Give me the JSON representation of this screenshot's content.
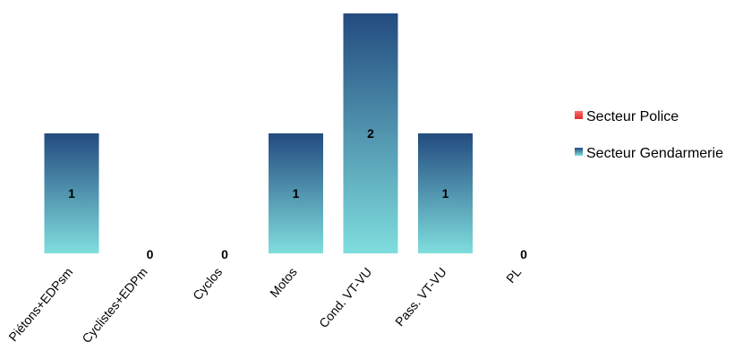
{
  "chart_data": {
    "type": "bar",
    "title": "",
    "xlabel": "",
    "ylabel": "",
    "categories": [
      "Piétons+EDPsm",
      "Cyclistes+EDPm",
      "Cyclos",
      "Motos",
      "Cond. VT-VU",
      "Pass. VT-VU",
      "PL"
    ],
    "series": [
      {
        "name": "Secteur Police",
        "values": [
          0,
          0,
          0,
          0,
          0,
          0,
          0
        ],
        "color": "#f04a4a"
      },
      {
        "name": "Secteur Gendarmerie",
        "values": [
          1,
          0,
          0,
          1,
          2,
          1,
          0
        ],
        "color": "#3f8fa8"
      }
    ],
    "data_labels": [
      "1",
      "0",
      "0",
      "1",
      "2",
      "1",
      "0"
    ],
    "ylim": [
      0,
      2
    ],
    "grid": false,
    "legend_position": "right",
    "colors": {
      "gendarmerie_top": "#234b7f",
      "gendarmerie_bottom": "#7fdede",
      "police_top": "#ff6b6b",
      "police_bottom": "#e02b2b"
    }
  }
}
